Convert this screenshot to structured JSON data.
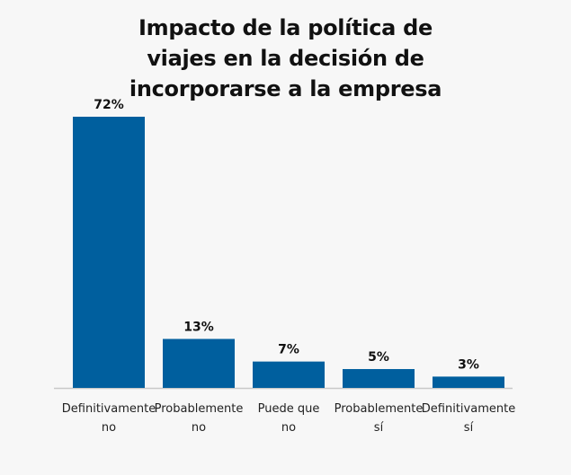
{
  "chart_data": {
    "type": "bar",
    "title_lines": [
      "Impacto de la política de",
      "viajes en la decisión de",
      "incorporarse a la empresa"
    ],
    "categories": [
      [
        "Definitivamente",
        "no"
      ],
      [
        "Probablemente",
        "no"
      ],
      [
        "Puede que",
        "no"
      ],
      [
        "Probablemente",
        "sí"
      ],
      [
        "Definitivamente",
        "sí"
      ]
    ],
    "values": [
      72,
      13,
      7,
      5,
      3
    ],
    "value_labels": [
      "72%",
      "13%",
      "7%",
      "5%",
      "3%"
    ],
    "ylim": [
      0,
      72
    ],
    "bar_color": "#005f9e",
    "axis_color": "#c8c8c8",
    "grid": false
  }
}
